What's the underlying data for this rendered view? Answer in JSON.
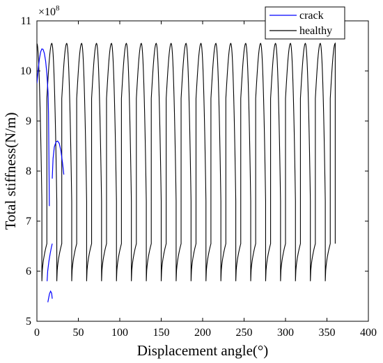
{
  "chart_data": {
    "type": "line",
    "xlabel": "Displacement angle(°)",
    "ylabel": "Total stiffness(N/m)",
    "y_multiplier": "×10",
    "y_exponent": "8",
    "xlim": [
      0,
      400
    ],
    "ylim": [
      5,
      11
    ],
    "x_ticks": [
      0,
      50,
      100,
      150,
      200,
      250,
      300,
      350,
      400
    ],
    "y_ticks": [
      5,
      6,
      7,
      8,
      9,
      10,
      11
    ],
    "grid": false,
    "legend_position": "top-right",
    "series": [
      {
        "name": "crack",
        "color": "#0000ff",
        "segments": [
          {
            "x": [
              0,
              1.5,
              3,
              4.5,
              6,
              7.5,
              9,
              10.5,
              12,
              13.5,
              14,
              14.5,
              15
            ],
            "y": [
              9.75,
              10.02,
              10.24,
              10.38,
              10.44,
              10.43,
              10.35,
              10.2,
              9.95,
              9.55,
              9.15,
              8.3,
              7.3
            ]
          },
          {
            "x": [
              12.3,
              13,
              14.5,
              16,
              17.5,
              18.5
            ],
            "y": [
              5.8,
              6.0,
              6.2,
              6.35,
              6.48,
              6.55
            ]
          },
          {
            "x": [
              18.5,
              19.5,
              21,
              23,
              25,
              27,
              29,
              31,
              32.5
            ],
            "y": [
              7.85,
              8.25,
              8.48,
              8.58,
              8.6,
              8.55,
              8.4,
              8.15,
              7.93
            ]
          },
          {
            "x": [
              13.2,
              14,
              15.2,
              16.5,
              17.8,
              18.5
            ],
            "y": [
              5.38,
              5.45,
              5.55,
              5.6,
              5.56,
              5.45
            ]
          }
        ]
      },
      {
        "name": "healthy",
        "color": "#000000",
        "period": 18,
        "start": -6,
        "max": 10.55,
        "hold": 6.55,
        "low": 5.8,
        "end_x": 360,
        "end_y": 9.7
      }
    ]
  }
}
